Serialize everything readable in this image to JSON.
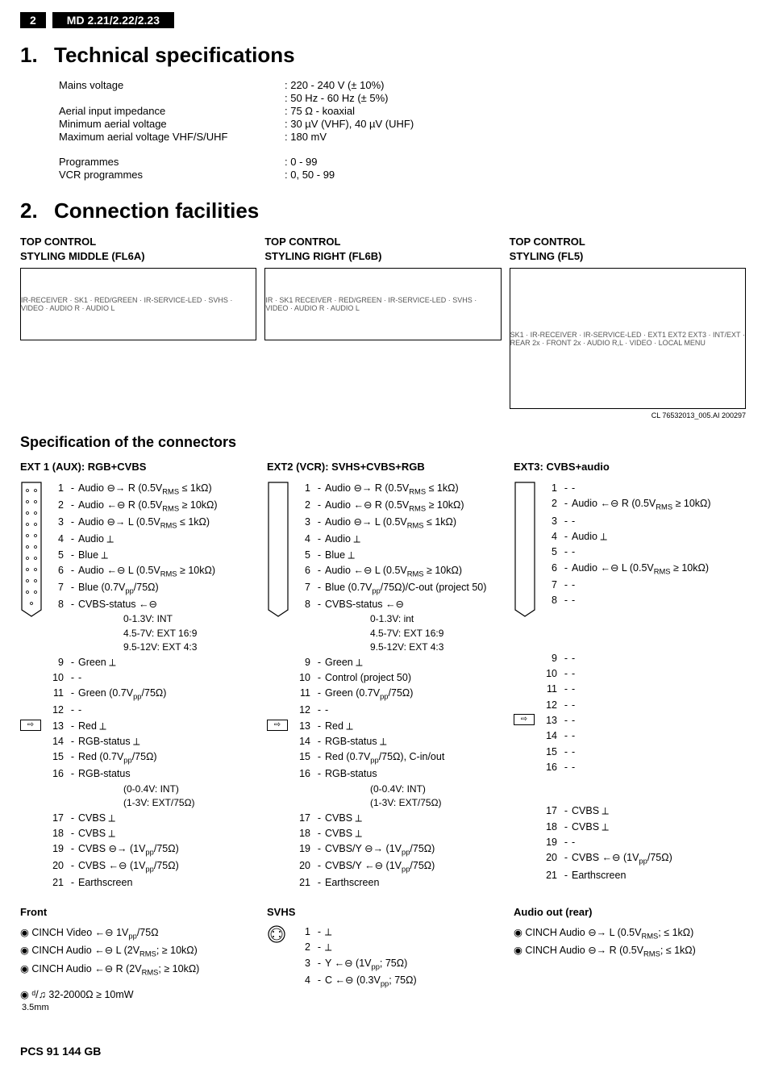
{
  "header": {
    "page_number": "2",
    "model": "MD 2.21/2.22/2.23"
  },
  "section1": {
    "number": "1.",
    "title": "Technical specifications",
    "rows": [
      {
        "label": "Mains voltage",
        "value": "220 - 240 V (± 10%)"
      },
      {
        "label": "",
        "value": "50 Hz - 60 Hz (± 5%)"
      },
      {
        "label": "Aerial input impedance",
        "value": "75 Ω - koaxial"
      },
      {
        "label": "Minimum aerial voltage",
        "value": "30 µV (VHF), 40 µV (UHF)"
      },
      {
        "label": "Maximum aerial voltage VHF/S/UHF",
        "value": "180 mV"
      },
      {
        "gap": true
      },
      {
        "label": "Programmes",
        "value": "0 - 99"
      },
      {
        "label": "VCR programmes",
        "value": "0, 50 - 99"
      }
    ]
  },
  "section2": {
    "number": "2.",
    "title": "Connection facilities",
    "diagrams": [
      {
        "title_l1": "TOP CONTROL",
        "title_l2": "STYLING MIDDLE (FL6A)",
        "placeholder": "IR-RECEIVER · SK1 · RED/GREEN · IR-SERVICE-LED · SVHS · VIDEO · AUDIO R · AUDIO L"
      },
      {
        "title_l1": "TOP CONTROL",
        "title_l2": "STYLING RIGHT (FL6B)",
        "placeholder": "IR · SK1 RECEIVER · RED/GREEN · IR-SERVICE-LED · SVHS · VIDEO · AUDIO R · AUDIO L"
      },
      {
        "title_l1": "TOP CONTROL",
        "title_l2": "STYLING (FL5)",
        "wide": true,
        "placeholder": "SK1 · IR-RECEIVER · IR-SERVICE-LED · EXT1 EXT2 EXT3 · INT/EXT · REAR 2x · FRONT 2x · AUDIO R,L · VIDEO · LOCAL MENU",
        "caption": "CL 76532013_005.AI  200297"
      }
    ]
  },
  "connectors_title": "Specification of the connectors",
  "ext1": {
    "head": "EXT 1 (AUX): RGB+CVBS",
    "pins": [
      {
        "n": "1",
        "d": "Audio ⊖→ R (0.5V<sub>RMS</sub> ≤ 1kΩ)"
      },
      {
        "n": "2",
        "d": "Audio ←⊖ R (0.5V<sub>RMS</sub> ≥ 10kΩ)"
      },
      {
        "n": "3",
        "d": "Audio ⊖→ L (0.5V<sub>RMS</sub> ≤ 1kΩ)"
      },
      {
        "n": "4",
        "d": "Audio ⟂"
      },
      {
        "n": "5",
        "d": "Blue ⟂"
      },
      {
        "n": "6",
        "d": "Audio ←⊖ L (0.5V<sub>RMS</sub> ≥ 10kΩ)"
      },
      {
        "n": "7",
        "d": "Blue (0.7V<sub>pp</sub>/75Ω)"
      },
      {
        "n": "8",
        "d": "CVBS-status ←⊖",
        "sub": [
          "0-1.3V: INT",
          "4.5-7V: EXT 16:9",
          "9.5-12V: EXT 4:3"
        ]
      },
      {
        "n": "9",
        "d": "Green ⟂"
      },
      {
        "n": "10",
        "d": "-"
      },
      {
        "n": "11",
        "d": "Green (0.7V<sub>pp</sub>/75Ω)"
      },
      {
        "n": "12",
        "d": "-"
      },
      {
        "n": "13",
        "d": "Red ⟂",
        "arrow": true
      },
      {
        "n": "14",
        "d": "RGB-status ⟂"
      },
      {
        "n": "15",
        "d": "Red (0.7V<sub>pp</sub>/75Ω)"
      },
      {
        "n": "16",
        "d": "RGB-status",
        "sub": [
          "(0-0.4V: INT)",
          "(1-3V: EXT/75Ω)"
        ]
      },
      {
        "n": "17",
        "d": "CVBS ⟂"
      },
      {
        "n": "18",
        "d": "CVBS ⟂"
      },
      {
        "n": "19",
        "d": "CVBS ⊖→ (1V<sub>pp</sub>/75Ω)"
      },
      {
        "n": "20",
        "d": "CVBS ←⊖ (1V<sub>pp</sub>/75Ω)"
      },
      {
        "n": "21",
        "d": "Earthscreen"
      }
    ]
  },
  "ext2": {
    "head": "EXT2 (VCR): SVHS+CVBS+RGB",
    "pins": [
      {
        "n": "1",
        "d": "Audio ⊖→ R (0.5V<sub>RMS</sub> ≤ 1kΩ)"
      },
      {
        "n": "2",
        "d": "Audio ←⊖ R (0.5V<sub>RMS</sub> ≥ 10kΩ)"
      },
      {
        "n": "3",
        "d": "Audio ⊖→ L (0.5V<sub>RMS</sub> ≤ 1kΩ)"
      },
      {
        "n": "4",
        "d": "Audio ⟂"
      },
      {
        "n": "5",
        "d": "Blue ⟂"
      },
      {
        "n": "6",
        "d": "Audio ←⊖ L (0.5V<sub>RMS</sub> ≥ 10kΩ)"
      },
      {
        "n": "7",
        "d": "Blue (0.7V<sub>pp</sub>/75Ω)/C-out (project 50)"
      },
      {
        "n": "8",
        "d": "CVBS-status ←⊖",
        "sub": [
          "0-1.3V: int",
          "4.5-7V: EXT 16:9",
          "9.5-12V: EXT 4:3"
        ]
      },
      {
        "n": "9",
        "d": "Green ⟂"
      },
      {
        "n": "10",
        "d": "Control (project 50)"
      },
      {
        "n": "11",
        "d": "Green (0.7V<sub>pp</sub>/75Ω)"
      },
      {
        "n": "12",
        "d": "-"
      },
      {
        "n": "13",
        "d": "Red ⟂",
        "arrow": true
      },
      {
        "n": "14",
        "d": "RGB-status ⟂"
      },
      {
        "n": "15",
        "d": "Red (0.7V<sub>pp</sub>/75Ω), C-in/out"
      },
      {
        "n": "16",
        "d": "RGB-status",
        "sub": [
          "(0-0.4V: INT)",
          "(1-3V: EXT/75Ω)"
        ]
      },
      {
        "n": "17",
        "d": "CVBS ⟂"
      },
      {
        "n": "18",
        "d": "CVBS ⟂"
      },
      {
        "n": "19",
        "d": "CVBS/Y ⊖→ (1V<sub>pp</sub>/75Ω)"
      },
      {
        "n": "20",
        "d": "CVBS/Y ←⊖ (1V<sub>pp</sub>/75Ω)"
      },
      {
        "n": "21",
        "d": "Earthscreen"
      }
    ]
  },
  "ext3": {
    "head": "EXT3: CVBS+audio",
    "pins": [
      {
        "n": "1",
        "d": "-"
      },
      {
        "n": "2",
        "d": "Audio ←⊖ R (0.5V<sub>RMS</sub> ≥ 10kΩ)"
      },
      {
        "n": "3",
        "d": "-"
      },
      {
        "n": "4",
        "d": "Audio ⟂"
      },
      {
        "n": "5",
        "d": "-"
      },
      {
        "n": "6",
        "d": "Audio ←⊖ L (0.5V<sub>RMS</sub> ≥ 10kΩ)"
      },
      {
        "n": "7",
        "d": "-"
      },
      {
        "n": "8",
        "d": "-",
        "sub": [
          "",
          "",
          ""
        ]
      },
      {
        "n": "9",
        "d": "-"
      },
      {
        "n": "10",
        "d": "-"
      },
      {
        "n": "11",
        "d": "-"
      },
      {
        "n": "12",
        "d": "-"
      },
      {
        "n": "13",
        "d": "-",
        "arrow": true
      },
      {
        "n": "14",
        "d": "-"
      },
      {
        "n": "15",
        "d": "-"
      },
      {
        "n": "16",
        "d": "-",
        "sub": [
          "",
          ""
        ]
      },
      {
        "n": "17",
        "d": "CVBS ⟂"
      },
      {
        "n": "18",
        "d": "CVBS ⟂"
      },
      {
        "n": "19",
        "d": "-"
      },
      {
        "n": "20",
        "d": "CVBS ←⊖ (1V<sub>pp</sub>/75Ω)"
      },
      {
        "n": "21",
        "d": "Earthscreen"
      }
    ]
  },
  "front": {
    "head": "Front",
    "lines": [
      "◉ CINCH Video ←⊖ 1V<sub>pp</sub>/75Ω",
      "◉ CINCH Audio ←⊖ L (2V<sub>RMS</sub>; ≥ 10kΩ)",
      "◉ CINCH Audio ←⊖ R (2V<sub>RMS</sub>; ≥ 10kΩ)"
    ],
    "headphone": "◉ ᵈ/♫  32-2000Ω ≥ 10mW",
    "hp_sub": "3.5mm"
  },
  "svhs": {
    "head": "SVHS",
    "pins": [
      {
        "n": "1",
        "d": "⟂"
      },
      {
        "n": "2",
        "d": "⟂"
      },
      {
        "n": "3",
        "d": "Y ←⊖ (1V<sub>pp</sub>; 75Ω)"
      },
      {
        "n": "4",
        "d": "C ←⊖ (0.3V<sub>pp</sub>; 75Ω)"
      }
    ]
  },
  "audio_out": {
    "head": "Audio out (rear)",
    "lines": [
      "◉ CINCH Audio ⊖→ L (0.5V<sub>RMS</sub>; ≤ 1kΩ)",
      "◉ CINCH Audio ⊖→ R (0.5V<sub>RMS</sub>; ≤ 1kΩ)"
    ]
  },
  "footer": "PCS 91 144 GB"
}
